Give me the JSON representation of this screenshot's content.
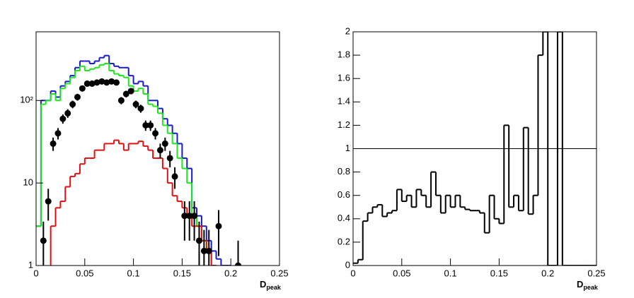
{
  "chart_data": [
    {
      "type": "histogram",
      "log_scale": true,
      "xlabel": {
        "main": "D",
        "sub": "peak"
      },
      "bins": [
        0,
        0.005,
        0.01,
        0.015,
        0.02,
        0.025,
        0.03,
        0.035,
        0.04,
        0.045,
        0.05,
        0.055,
        0.06,
        0.065,
        0.07,
        0.075,
        0.08,
        0.085,
        0.09,
        0.095,
        0.1,
        0.105,
        0.11,
        0.115,
        0.12,
        0.125,
        0.13,
        0.135,
        0.14,
        0.145,
        0.15,
        0.155,
        0.16,
        0.165,
        0.17,
        0.175,
        0.18,
        0.185,
        0.19,
        0.195,
        0.2,
        0.205,
        0.21,
        0.215,
        0.22,
        0.225,
        0.23,
        0.235,
        0.24,
        0.245,
        0.25
      ],
      "series": [
        {
          "color": "#1a1acc",
          "values": [
            3,
            100,
            100,
            130,
            110,
            150,
            170,
            200,
            250,
            300,
            300,
            280,
            300,
            330,
            350,
            280,
            260,
            250,
            250,
            200,
            160,
            170,
            150,
            100,
            100,
            80,
            60,
            50,
            40,
            30,
            20,
            15,
            5,
            4,
            3,
            2,
            1.5,
            1.2,
            1,
            1,
            0,
            0,
            0,
            0,
            0,
            0,
            0,
            0,
            0,
            0
          ]
        },
        {
          "color": "#1ee61e",
          "values": [
            3,
            90,
            100,
            120,
            100,
            140,
            160,
            190,
            230,
            260,
            230,
            240,
            250,
            270,
            280,
            230,
            210,
            200,
            190,
            150,
            130,
            140,
            120,
            90,
            85,
            70,
            50,
            40,
            30,
            20,
            15,
            10,
            4,
            3,
            2,
            1.5,
            1,
            0,
            0,
            0,
            0,
            0,
            0,
            0,
            0,
            0,
            0,
            0,
            0,
            0
          ]
        },
        {
          "color": "#e01010",
          "values": [
            0,
            0,
            0,
            3,
            5,
            6,
            9,
            12,
            13,
            17,
            20,
            20,
            25,
            25,
            30,
            30,
            33,
            30,
            25,
            30,
            30,
            32,
            28,
            25,
            20,
            20,
            15,
            10,
            7,
            6,
            5,
            4,
            3,
            3,
            2,
            1.5,
            1,
            0,
            0,
            0,
            0,
            0,
            0,
            0,
            0,
            0,
            0,
            0,
            0,
            0
          ]
        }
      ],
      "points": {
        "color": "#000000",
        "x": [
          0.0075,
          0.0125,
          0.0175,
          0.0225,
          0.0275,
          0.0325,
          0.0375,
          0.0425,
          0.0475,
          0.0525,
          0.0575,
          0.0625,
          0.0675,
          0.0725,
          0.0775,
          0.0825,
          0.0875,
          0.0925,
          0.0975,
          0.1025,
          0.1075,
          0.1125,
          0.1175,
          0.1225,
          0.1275,
          0.1325,
          0.1375,
          0.1425,
          0.1525,
          0.1575,
          0.1625,
          0.1675,
          0.1725,
          0.1775,
          0.1875,
          0.2075
        ],
        "values": [
          2,
          6,
          30,
          40,
          60,
          70,
          90,
          110,
          140,
          160,
          160,
          165,
          170,
          165,
          170,
          165,
          100,
          120,
          130,
          90,
          80,
          50,
          50,
          40,
          25,
          30,
          20,
          12,
          4,
          4,
          4,
          2,
          1.5,
          1.5,
          3,
          1
        ],
        "errors": [
          1.4,
          2.5,
          5.5,
          6.3,
          7.7,
          8.4,
          9.5,
          10.5,
          11.8,
          12.6,
          12.6,
          12.8,
          13,
          12.8,
          13,
          12.8,
          10,
          11,
          11.4,
          9.5,
          8.9,
          7.1,
          7.1,
          6.3,
          5,
          5.5,
          4.5,
          3.5,
          2,
          2,
          2,
          1.4,
          1.2,
          1.2,
          1.7,
          1
        ]
      },
      "xlim": [
        0,
        0.25
      ],
      "xticks": [
        0,
        0.05,
        0.1,
        0.15,
        0.2,
        0.25
      ],
      "ylim": [
        1,
        680
      ],
      "yticks": [
        1,
        10,
        {
          "value": 100,
          "label": "10²"
        }
      ]
    },
    {
      "type": "histogram",
      "log_scale": false,
      "xlabel": {
        "main": "D",
        "sub": "peak"
      },
      "bins": [
        0,
        0.005,
        0.01,
        0.015,
        0.02,
        0.025,
        0.03,
        0.035,
        0.04,
        0.045,
        0.05,
        0.055,
        0.06,
        0.065,
        0.07,
        0.075,
        0.08,
        0.085,
        0.09,
        0.095,
        0.1,
        0.105,
        0.11,
        0.115,
        0.12,
        0.125,
        0.13,
        0.135,
        0.14,
        0.145,
        0.15,
        0.155,
        0.16,
        0.165,
        0.17,
        0.175,
        0.18,
        0.185,
        0.19,
        0.195,
        0.2,
        0.205,
        0.21,
        0.215,
        0.22,
        0.225,
        0.23,
        0.235,
        0.24,
        0.245,
        0.25
      ],
      "series": [
        {
          "color": "#000000",
          "values": [
            0.02,
            0.05,
            0.38,
            0.45,
            0.5,
            0.52,
            0.42,
            0.45,
            0.47,
            0.65,
            0.55,
            0.6,
            0.5,
            0.65,
            0.6,
            0.5,
            0.8,
            0.6,
            0.45,
            0.6,
            0.5,
            0.6,
            0.5,
            0.48,
            0.47,
            0.47,
            0.45,
            0.28,
            0.6,
            0.4,
            0.36,
            1.2,
            0.5,
            0.6,
            0.47,
            1.18,
            0.44,
            0.6,
            1.8,
            2,
            0,
            0,
            2,
            0,
            0,
            0,
            0,
            0,
            0,
            0
          ]
        }
      ],
      "hline": 1,
      "xlim": [
        0,
        0.25
      ],
      "xticks": [
        0,
        0.05,
        0.1,
        0.15,
        0.2,
        0.25
      ],
      "ylim": [
        0,
        2
      ],
      "yticks": [
        0,
        0.2,
        0.4,
        0.6,
        0.8,
        1,
        1.2,
        1.4,
        1.6,
        1.8,
        2
      ]
    }
  ]
}
